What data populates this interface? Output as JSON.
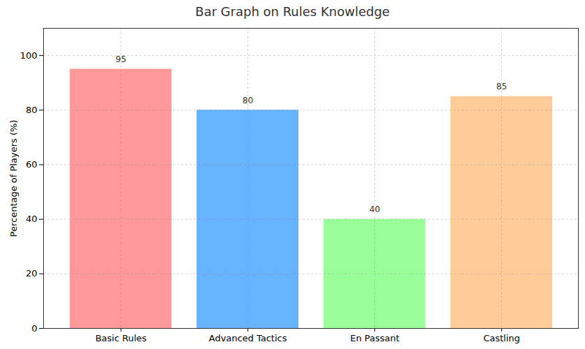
{
  "chart_data": {
    "type": "bar",
    "title": "Bar Graph on Rules Knowledge",
    "y_label": "Percentage of Players (%)",
    "categories": [
      "Basic Rules",
      "Advanced Tactics",
      "En Passant",
      "Castling"
    ],
    "values": [
      95,
      80,
      40,
      85
    ],
    "colors": [
      "#ff9999",
      "#66b3ff",
      "#99ff99",
      "#ffcc99"
    ],
    "ylim": [
      0,
      110
    ],
    "yticks": [
      0,
      20,
      40,
      60,
      80,
      100
    ],
    "grid": true,
    "data_labels": true
  }
}
